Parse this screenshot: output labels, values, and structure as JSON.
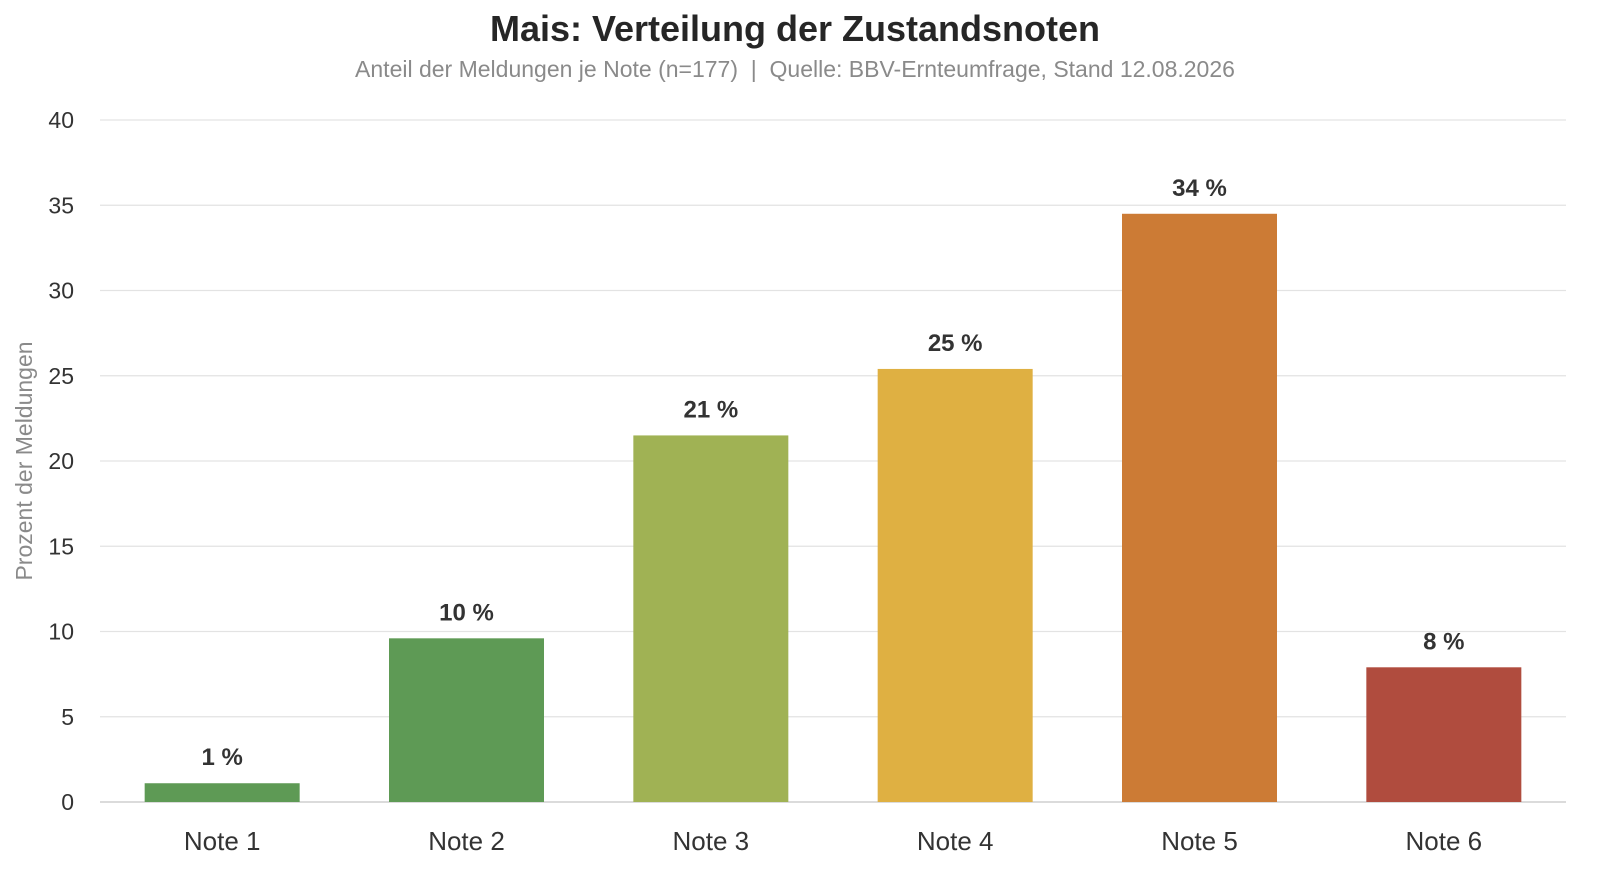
{
  "chart_data": {
    "type": "bar",
    "title": "Mais: Verteilung der Zustandsnoten",
    "subtitle": "Anteil der Meldungen je Note (n=177)  |  Quelle: BBV-Ernteumfrage, Stand 12.08.2026",
    "xlabel": "",
    "ylabel": "Prozent der Meldungen",
    "ylim": [
      0,
      40
    ],
    "yticks": [
      0,
      5,
      10,
      15,
      20,
      25,
      30,
      35,
      40
    ],
    "grid": true,
    "categories": [
      "Note 1",
      "Note 2",
      "Note 3",
      "Note 4",
      "Note 5",
      "Note 6"
    ],
    "values": [
      1.1,
      9.6,
      21.5,
      25.4,
      34.5,
      7.9
    ],
    "value_labels": [
      "1 %",
      "10 %",
      "21 %",
      "25 %",
      "34 %",
      "8 %"
    ],
    "colors": [
      "#5e9a55",
      "#5e9a55",
      "#a0b254",
      "#dfb042",
      "#cc7b35",
      "#b04c3e"
    ]
  }
}
